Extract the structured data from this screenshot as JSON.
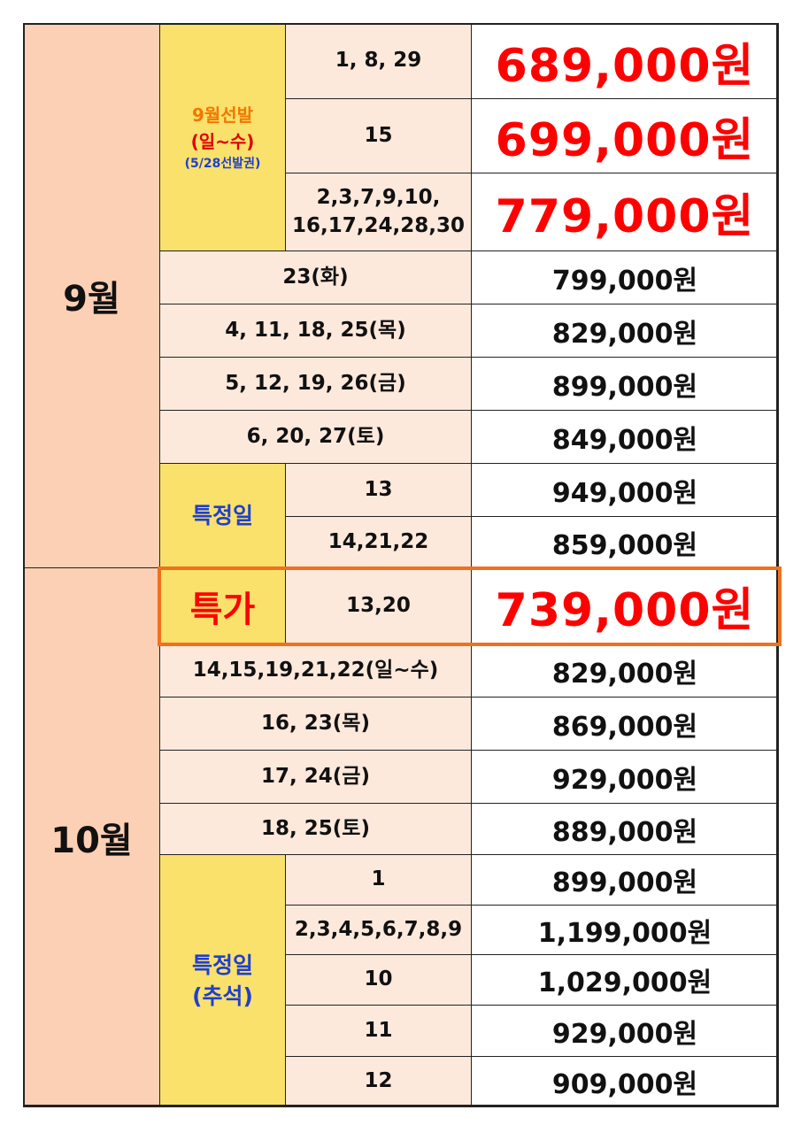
{
  "sep": {
    "month": "9월",
    "early": {
      "title": "9월선발",
      "days": "(일~수)",
      "note": "(5/28선발권)",
      "rows": [
        {
          "dates": "1,  8,  29",
          "price": "689,000원"
        },
        {
          "dates": "15",
          "price": "699,000원"
        },
        {
          "dates": "2,3,7,9,10,\n16,17,24,28,30",
          "price": "779,000원"
        }
      ]
    },
    "rows": [
      {
        "dates": "23(화)",
        "price": "799,000원"
      },
      {
        "dates": "4,  11,  18,  25(목)",
        "price": "829,000원"
      },
      {
        "dates": "5,  12,  19,  26(금)",
        "price": "899,000원"
      },
      {
        "dates": "6,  20,  27(토)",
        "price": "849,000원"
      }
    ],
    "special": {
      "label": "특정일",
      "rows": [
        {
          "dates": "13",
          "price": "949,000원"
        },
        {
          "dates": "14,21,22",
          "price": "859,000원"
        }
      ]
    }
  },
  "oct": {
    "month": "10월",
    "deal": {
      "label": "특가",
      "dates": "13,20",
      "price": "739,000원"
    },
    "rows": [
      {
        "dates": "14,15,19,21,22(일~수)",
        "price": "829,000원"
      },
      {
        "dates": "16,  23(목)",
        "price": "869,000원"
      },
      {
        "dates": "17,  24(금)",
        "price": "929,000원"
      },
      {
        "dates": "18,  25(토)",
        "price": "889,000원"
      }
    ],
    "special": {
      "label": "특정일",
      "note": "(추석)",
      "rows": [
        {
          "dates": "1",
          "price": "899,000원"
        },
        {
          "dates": "2,3,4,5,6,7,8,9",
          "price": "1,199,000원"
        },
        {
          "dates": "10",
          "price": "1,029,000원"
        },
        {
          "dates": "11",
          "price": "929,000원"
        },
        {
          "dates": "12",
          "price": "909,000원"
        }
      ]
    }
  }
}
